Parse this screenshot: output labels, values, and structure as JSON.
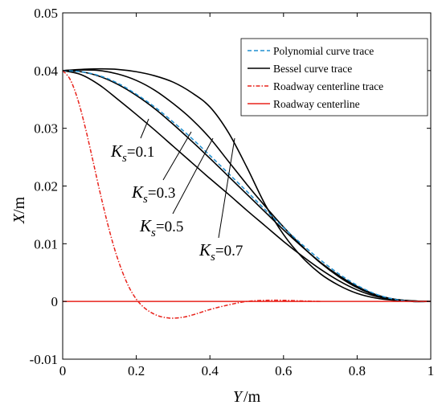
{
  "chart_data": {
    "type": "line",
    "xlabel_var": "Y",
    "xlabel_unit": "m",
    "ylabel_var": "X",
    "ylabel_unit": "m",
    "xlim": [
      0,
      1
    ],
    "ylim": [
      -0.01,
      0.05
    ],
    "xticks": [
      0,
      0.2,
      0.4,
      0.6,
      0.8,
      1
    ],
    "xtick_labels": [
      "0",
      "0.2",
      "0.4",
      "0.6",
      "0.8",
      "1"
    ],
    "yticks": [
      -0.01,
      0,
      0.01,
      0.02,
      0.03,
      0.04,
      0.05
    ],
    "ytick_labels": [
      "-0.01",
      "0",
      "0.01",
      "0.02",
      "0.03",
      "0.04",
      "0.05"
    ],
    "grid": false,
    "legend_position": "top-right",
    "legend": [
      {
        "label": "Polynomial curve trace",
        "color": "#1f8fd0",
        "dash": "dashed"
      },
      {
        "label": "Bessel curve trace",
        "color": "#000000",
        "dash": "solid"
      },
      {
        "label": "Roadway centerline trace",
        "color": "#e8231c",
        "dash": "dashdot"
      },
      {
        "label": "Roadway centerline",
        "color": "#e8231c",
        "dash": "solid"
      }
    ],
    "series": [
      {
        "name": "Polynomial curve trace",
        "color": "#1f8fd0",
        "x": [
          0,
          0.05,
          0.1,
          0.15,
          0.2,
          0.25,
          0.3,
          0.35,
          0.4,
          0.45,
          0.5,
          0.55,
          0.6,
          0.65,
          0.7,
          0.75,
          0.8,
          0.85,
          0.9,
          0.95,
          1.0
        ],
        "y": [
          0.04,
          0.0398,
          0.0391,
          0.0378,
          0.0359,
          0.0337,
          0.0311,
          0.0283,
          0.0253,
          0.0222,
          0.0191,
          0.0159,
          0.0128,
          0.0099,
          0.0072,
          0.0048,
          0.0028,
          0.0013,
          0.0004,
          0.0,
          0.0
        ]
      },
      {
        "name": "Bessel curve trace",
        "color": "#000000",
        "annotation": "0.1",
        "x": [
          0,
          0.05,
          0.1,
          0.15,
          0.2,
          0.25,
          0.3,
          0.35,
          0.4,
          0.45,
          0.5,
          0.55,
          0.6,
          0.65,
          0.7,
          0.75,
          0.8,
          0.85,
          0.9,
          0.95,
          1.0
        ],
        "y": [
          0.04,
          0.0393,
          0.0375,
          0.035,
          0.0324,
          0.0297,
          0.0269,
          0.0241,
          0.0213,
          0.0186,
          0.0158,
          0.0131,
          0.0104,
          0.0079,
          0.0056,
          0.0036,
          0.002,
          0.0009,
          0.0003,
          0.0,
          0.0
        ]
      },
      {
        "name": "Bessel curve trace",
        "color": "#000000",
        "annotation": "0.3",
        "x": [
          0,
          0.05,
          0.1,
          0.15,
          0.2,
          0.25,
          0.3,
          0.35,
          0.4,
          0.45,
          0.5,
          0.55,
          0.6,
          0.65,
          0.7,
          0.75,
          0.8,
          0.85,
          0.9,
          0.95,
          1.0
        ],
        "y": [
          0.04,
          0.0398,
          0.039,
          0.0376,
          0.0357,
          0.0334,
          0.0307,
          0.0278,
          0.0248,
          0.0217,
          0.0186,
          0.0155,
          0.0124,
          0.0095,
          0.0068,
          0.0045,
          0.0026,
          0.0012,
          0.0004,
          0.0001,
          0.0
        ]
      },
      {
        "name": "Bessel curve trace",
        "color": "#000000",
        "annotation": "0.5",
        "x": [
          0,
          0.05,
          0.1,
          0.15,
          0.2,
          0.25,
          0.3,
          0.35,
          0.4,
          0.45,
          0.5,
          0.55,
          0.6,
          0.65,
          0.7,
          0.75,
          0.8,
          0.85,
          0.9,
          0.95,
          1.0
        ],
        "y": [
          0.04,
          0.0401,
          0.04,
          0.0394,
          0.0383,
          0.0366,
          0.0343,
          0.0316,
          0.0283,
          0.0243,
          0.0203,
          0.0165,
          0.0129,
          0.0096,
          0.0067,
          0.0043,
          0.0024,
          0.0011,
          0.0004,
          0.0001,
          0.0
        ]
      },
      {
        "name": "Bessel curve trace",
        "color": "#000000",
        "annotation": "0.7",
        "x": [
          0,
          0.05,
          0.1,
          0.15,
          0.2,
          0.25,
          0.3,
          0.35,
          0.4,
          0.45,
          0.5,
          0.55,
          0.6,
          0.65,
          0.7,
          0.75,
          0.8,
          0.85,
          0.9,
          0.95,
          1.0
        ],
        "y": [
          0.04,
          0.0402,
          0.0403,
          0.0402,
          0.0398,
          0.0391,
          0.038,
          0.0362,
          0.0337,
          0.0293,
          0.0233,
          0.0168,
          0.0116,
          0.0077,
          0.0048,
          0.0028,
          0.0014,
          0.0006,
          0.0002,
          0.0,
          0.0
        ]
      },
      {
        "name": "Roadway centerline trace",
        "color": "#e8231c",
        "x": [
          0,
          0.02,
          0.04,
          0.06,
          0.08,
          0.1,
          0.12,
          0.14,
          0.16,
          0.18,
          0.2,
          0.22,
          0.24,
          0.26,
          0.28,
          0.3,
          0.33,
          0.36,
          0.4,
          0.45,
          0.5,
          0.55,
          0.6,
          0.65,
          0.7
        ],
        "y": [
          0.04,
          0.0385,
          0.0352,
          0.0305,
          0.025,
          0.0193,
          0.014,
          0.0093,
          0.0055,
          0.0025,
          0.0004,
          -0.001,
          -0.0019,
          -0.0025,
          -0.0028,
          -0.0029,
          -0.0027,
          -0.0022,
          -0.0014,
          -0.0006,
          0.0,
          0.0002,
          0.0002,
          0.0001,
          0.0
        ]
      },
      {
        "name": "Roadway centerline",
        "color": "#e8231c",
        "x": [
          0,
          1
        ],
        "y": [
          0,
          0
        ]
      }
    ],
    "annotations": [
      {
        "var": "K",
        "sub": "s",
        "value": "=0.1"
      },
      {
        "var": "K",
        "sub": "s",
        "value": "=0.3"
      },
      {
        "var": "K",
        "sub": "s",
        "value": "=0.5"
      },
      {
        "var": "K",
        "sub": "s",
        "value": "=0.7"
      }
    ]
  }
}
